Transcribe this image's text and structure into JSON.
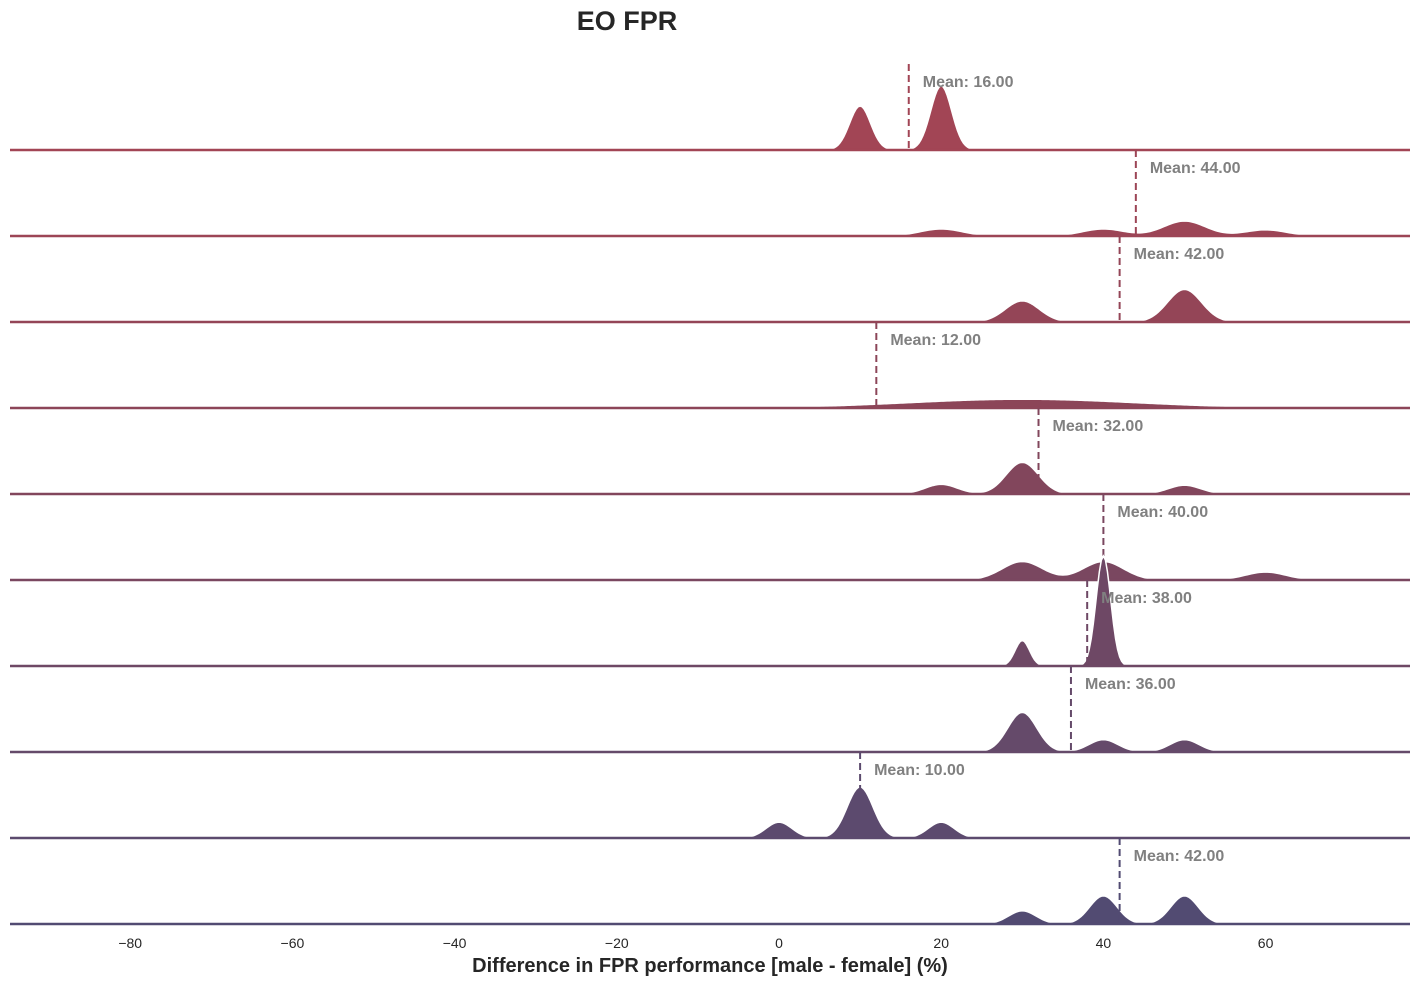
{
  "chart_data": {
    "type": "area",
    "subtype": "ridgeline-kde",
    "title": "EO FPR",
    "xlabel": "Difference in FPR performance [male - female] (%)",
    "ylabel": "",
    "xlim": [
      -95,
      78
    ],
    "xticks": [
      -80,
      -60,
      -40,
      -20,
      0,
      20,
      40,
      60
    ],
    "xtick_labels": [
      "−80",
      "−60",
      "−40",
      "−20",
      "0",
      "20",
      "40",
      "60"
    ],
    "grid": false,
    "legend": "none",
    "mean_label_prefix": "Mean: ",
    "series": [
      {
        "mean": 16.0,
        "mean_label": "Mean: 16.00",
        "color": "#a24555",
        "peaks": [
          {
            "x": 10,
            "height": 0.5,
            "width": 1.3
          },
          {
            "x": 20,
            "height": 0.73,
            "width": 1.3
          }
        ]
      },
      {
        "mean": 44.0,
        "mean_label": "Mean: 44.00",
        "color": "#9c4556",
        "peaks": [
          {
            "x": 20,
            "height": 0.08,
            "width": 2.6
          },
          {
            "x": 40,
            "height": 0.08,
            "width": 2.6
          },
          {
            "x": 50,
            "height": 0.17,
            "width": 2.6
          },
          {
            "x": 60,
            "height": 0.07,
            "width": 2.6
          }
        ]
      },
      {
        "mean": 42.0,
        "mean_label": "Mean: 42.00",
        "color": "#944557",
        "peaks": [
          {
            "x": 30,
            "height": 0.24,
            "width": 2.1
          },
          {
            "x": 50,
            "height": 0.37,
            "width": 2.1
          }
        ]
      },
      {
        "mean": 12.0,
        "mean_label": "Mean: 12.00",
        "color": "#8c4558",
        "peaks": [
          {
            "x": -60,
            "height": 0.015,
            "width": 10
          },
          {
            "x": 30,
            "height": 0.1,
            "width": 14
          }
        ]
      },
      {
        "mean": 32.0,
        "mean_label": "Mean: 32.00",
        "color": "#82465c",
        "peaks": [
          {
            "x": 20,
            "height": 0.11,
            "width": 2.0
          },
          {
            "x": 30,
            "height": 0.36,
            "width": 2.0
          },
          {
            "x": 50,
            "height": 0.1,
            "width": 2.0
          }
        ]
      },
      {
        "mean": 40.0,
        "mean_label": "Mean: 40.00",
        "color": "#7a4760",
        "peaks": [
          {
            "x": 30,
            "height": 0.21,
            "width": 2.5
          },
          {
            "x": 40,
            "height": 0.21,
            "width": 2.5
          },
          {
            "x": 60,
            "height": 0.09,
            "width": 2.5
          }
        ]
      },
      {
        "mean": 38.0,
        "mean_label": "Mean: 38.00",
        "color": "#6e4865",
        "peaks": [
          {
            "x": 30,
            "height": 0.29,
            "width": 0.9
          },
          {
            "x": 40,
            "height": 1.25,
            "width": 0.9
          }
        ]
      },
      {
        "mean": 36.0,
        "mean_label": "Mean: 36.00",
        "color": "#654a6a",
        "peaks": [
          {
            "x": 30,
            "height": 0.45,
            "width": 1.8
          },
          {
            "x": 40,
            "height": 0.14,
            "width": 1.8
          },
          {
            "x": 50,
            "height": 0.14,
            "width": 1.8
          }
        ]
      },
      {
        "mean": 10.0,
        "mean_label": "Mean: 10.00",
        "color": "#5c4a6e",
        "peaks": [
          {
            "x": 0,
            "height": 0.18,
            "width": 1.6
          },
          {
            "x": 10,
            "height": 0.58,
            "width": 1.6
          },
          {
            "x": 20,
            "height": 0.18,
            "width": 1.6
          }
        ]
      },
      {
        "mean": 42.0,
        "mean_label": "Mean: 42.00",
        "color": "#524b72",
        "peaks": [
          {
            "x": 30,
            "height": 0.15,
            "width": 1.7
          },
          {
            "x": 40,
            "height": 0.32,
            "width": 1.7
          },
          {
            "x": 50,
            "height": 0.32,
            "width": 1.7
          }
        ]
      }
    ]
  }
}
